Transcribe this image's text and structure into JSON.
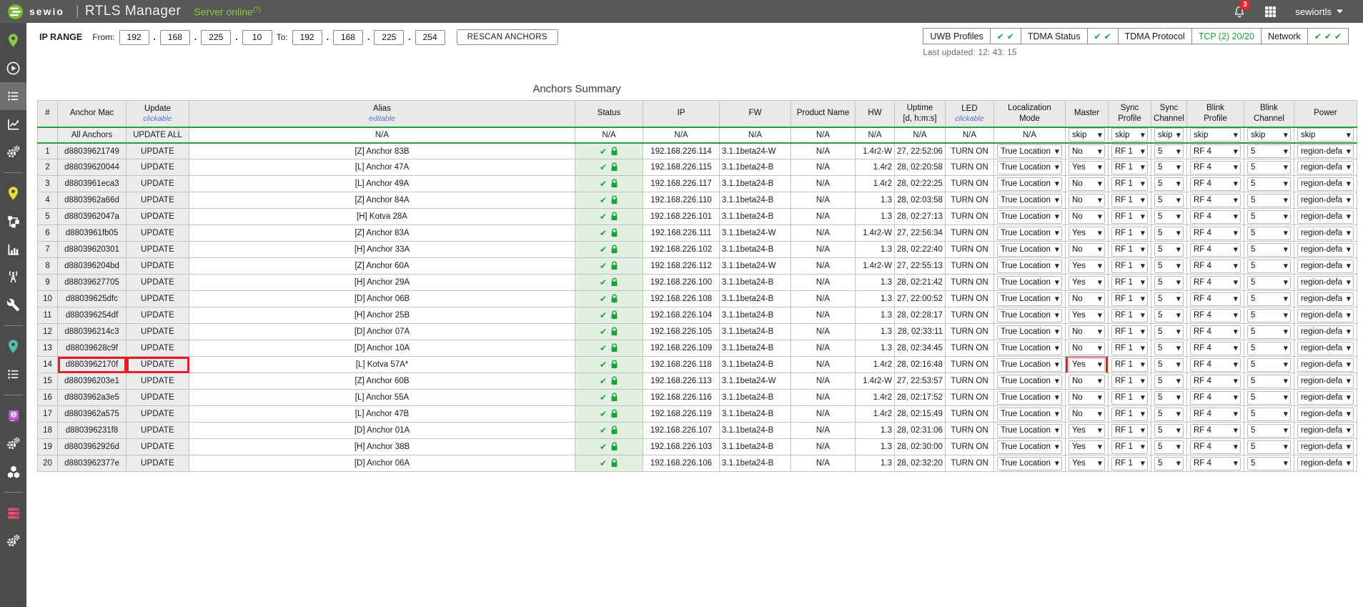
{
  "colors": {
    "accent_green": "#1fa23c",
    "lime_green": "#8dc63f",
    "highlight_red": "#ed1c24",
    "status_cell_bg": "#e3efe3"
  },
  "header": {
    "brand": "sewio",
    "separator": "|",
    "app_title": "RTLS Manager",
    "server_status": "Server online",
    "server_status_note": "(?)",
    "notification_count": "3",
    "user": "sewiortls"
  },
  "toolbar": {
    "ip_range_label": "IP RANGE",
    "from_label": "From:",
    "to_label": "To:",
    "octet_separator": ".",
    "from_octets": [
      "192",
      "168",
      "225",
      "10"
    ],
    "to_octets": [
      "192",
      "168",
      "225",
      "254"
    ],
    "rescan_label": "RESCAN ANCHORS",
    "last_updated": "Last updated: 12: 43: 15",
    "status_boxes": [
      {
        "label": "UWB Profiles",
        "checks": 2
      },
      {
        "label": "TDMA Status",
        "checks": 2
      },
      {
        "label": "TDMA Protocol",
        "value": "TCP (2) 20/20"
      },
      {
        "label": "Network",
        "checks": 3
      }
    ]
  },
  "sidebar": {
    "groups": [
      {
        "items": [
          {
            "name": "sensmap",
            "icon": "pin",
            "color": "#8dc63f"
          },
          {
            "name": "player",
            "icon": "play",
            "color": "#ffffff"
          },
          {
            "name": "anchors-summary",
            "icon": "list",
            "color": "#ffffff",
            "selected": true
          },
          {
            "name": "charts",
            "icon": "linechart",
            "color": "#ffffff"
          },
          {
            "name": "settings",
            "icon": "gears",
            "color": "#ffffff"
          }
        ]
      },
      {
        "items": [
          {
            "name": "map",
            "icon": "pin",
            "color": "#f1d832"
          },
          {
            "name": "topology",
            "icon": "network",
            "color": "#ffffff"
          },
          {
            "name": "statistics",
            "icon": "barchart",
            "color": "#ffffff"
          },
          {
            "name": "antennas",
            "icon": "antenna",
            "color": "#ffffff"
          },
          {
            "name": "tools",
            "icon": "wrench",
            "color": "#ffffff"
          }
        ]
      },
      {
        "items": [
          {
            "name": "locations",
            "icon": "pin",
            "color": "#56bfae"
          },
          {
            "name": "lists",
            "icon": "list",
            "color": "#ffffff"
          }
        ]
      },
      {
        "items": [
          {
            "name": "address-book",
            "icon": "book",
            "color": "#b964c9"
          },
          {
            "name": "services",
            "icon": "gears",
            "color": "#ffffff"
          },
          {
            "name": "modules",
            "icon": "cubes",
            "color": "#ffffff"
          }
        ]
      },
      {
        "items": [
          {
            "name": "servers",
            "icon": "servers",
            "color": "#e84f6e"
          },
          {
            "name": "system-settings",
            "icon": "gears",
            "color": "#ffffff"
          }
        ]
      }
    ]
  },
  "table": {
    "title": "Anchors Summary",
    "columns": [
      {
        "key": "num",
        "label": "#"
      },
      {
        "key": "mac",
        "label": "Anchor Mac"
      },
      {
        "key": "update",
        "label": "Update",
        "note": "clickable"
      },
      {
        "key": "alias",
        "label": "Alias",
        "note": "editable"
      },
      {
        "key": "status",
        "label": "Status"
      },
      {
        "key": "ip",
        "label": "IP"
      },
      {
        "key": "fw",
        "label": "FW"
      },
      {
        "key": "product",
        "label": "Product Name"
      },
      {
        "key": "hw",
        "label": "HW"
      },
      {
        "key": "uptime",
        "label": "Uptime",
        "line2": "[d, h:m:s]"
      },
      {
        "key": "led",
        "label": "LED",
        "note": "clickable"
      },
      {
        "key": "loc",
        "label": "Localization",
        "line2": "Mode"
      },
      {
        "key": "master",
        "label": "Master"
      },
      {
        "key": "sync_profile",
        "label": "Sync",
        "line2": "Profile"
      },
      {
        "key": "sync_channel",
        "label": "Sync",
        "line2": "Channel"
      },
      {
        "key": "blink_profile",
        "label": "Blink",
        "line2": "Profile"
      },
      {
        "key": "blink_channel",
        "label": "Blink",
        "line2": "Channel"
      },
      {
        "key": "power",
        "label": "Power"
      }
    ],
    "all_row": {
      "mac": "All Anchors",
      "update": "UPDATE ALL",
      "alias": "N/A",
      "status": "N/A",
      "ip": "N/A",
      "fw": "N/A",
      "product": "N/A",
      "hw": "N/A",
      "uptime": "N/A",
      "led": "N/A",
      "loc": "N/A",
      "master": "skip",
      "sync_profile": "skip",
      "sync_channel": "skip",
      "blink_profile": "skip",
      "blink_channel": "skip",
      "power": "skip"
    },
    "row_defaults": {
      "update": "UPDATE",
      "product": "N/A",
      "led": "TURN ON",
      "loc": "True Location",
      "sync_profile": "RF 1",
      "sync_channel": "5",
      "blink_profile": "RF 4",
      "blink_channel": "5",
      "power": "region-default"
    },
    "rows": [
      {
        "num": 1,
        "mac": "d88039621749",
        "alias": "[Z] Anchor 83B",
        "ip": "192.168.226.114",
        "fw": "3.1.1beta24-W",
        "hw": "1.4r2-W",
        "uptime": "27, 22:52:06",
        "master": "No"
      },
      {
        "num": 2,
        "mac": "d88039620044",
        "alias": "[L] Anchor 47A",
        "ip": "192.168.226.115",
        "fw": "3.1.1beta24-B",
        "hw": "1.4r2",
        "uptime": "28, 02:20:58",
        "master": "Yes"
      },
      {
        "num": 3,
        "mac": "d8803961eca3",
        "alias": "[L] Anchor 49A",
        "ip": "192.168.226.117",
        "fw": "3.1.1beta24-B",
        "hw": "1.4r2",
        "uptime": "28, 02:22:25",
        "master": "No"
      },
      {
        "num": 4,
        "mac": "d8803962a66d",
        "alias": "[Z] Anchor 84A",
        "ip": "192.168.226.110",
        "fw": "3.1.1beta24-B",
        "hw": "1.3",
        "uptime": "28, 02:03:58",
        "master": "No"
      },
      {
        "num": 5,
        "mac": "d8803962047a",
        "alias": "[H] Kotva 28A",
        "ip": "192.168.226.101",
        "fw": "3.1.1beta24-B",
        "hw": "1.3",
        "uptime": "28, 02:27:13",
        "master": "No"
      },
      {
        "num": 6,
        "mac": "d8803961fb05",
        "alias": "[Z] Anchor 83A",
        "ip": "192.168.226.111",
        "fw": "3.1.1beta24-W",
        "hw": "1.4r2-W",
        "uptime": "27, 22:56:34",
        "master": "Yes"
      },
      {
        "num": 7,
        "mac": "d88039620301",
        "alias": "[H] Anchor 33A",
        "ip": "192.168.226.102",
        "fw": "3.1.1beta24-B",
        "hw": "1.3",
        "uptime": "28, 02:22:40",
        "master": "No"
      },
      {
        "num": 8,
        "mac": "d880396204bd",
        "alias": "[Z] Anchor 60A",
        "ip": "192.168.226.112",
        "fw": "3.1.1beta24-W",
        "hw": "1.4r2-W",
        "uptime": "27, 22:55:13",
        "master": "Yes"
      },
      {
        "num": 9,
        "mac": "d88039627705",
        "alias": "[H] Anchor 29A",
        "ip": "192.168.226.100",
        "fw": "3.1.1beta24-B",
        "hw": "1.3",
        "uptime": "28, 02:21:42",
        "master": "Yes"
      },
      {
        "num": 10,
        "mac": "d88039625dfc",
        "alias": "[D] Anchor 06B",
        "ip": "192.168.226.108",
        "fw": "3.1.1beta24-B",
        "hw": "1.3",
        "uptime": "27, 22:00:52",
        "master": "No"
      },
      {
        "num": 11,
        "mac": "d880396254df",
        "alias": "[H] Anchor 25B",
        "ip": "192.168.226.104",
        "fw": "3.1.1beta24-B",
        "hw": "1.3",
        "uptime": "28, 02:28:17",
        "master": "Yes"
      },
      {
        "num": 12,
        "mac": "d880396214c3",
        "alias": "[D] Anchor 07A",
        "ip": "192.168.226.105",
        "fw": "3.1.1beta24-B",
        "hw": "1.3",
        "uptime": "28, 02:33:11",
        "master": "No"
      },
      {
        "num": 13,
        "mac": "d88039628c9f",
        "alias": "[D] Anchor 10A",
        "ip": "192.168.226.109",
        "fw": "3.1.1beta24-B",
        "hw": "1.3",
        "uptime": "28, 02:34:45",
        "master": "No"
      },
      {
        "num": 14,
        "mac": "d8803962170f",
        "alias": "[L] Kotva 57A*",
        "ip": "192.168.226.118",
        "fw": "3.1.1beta24-B",
        "hw": "1.4r2",
        "uptime": "28, 02:16:48",
        "master": "Yes"
      },
      {
        "num": 15,
        "mac": "d880396203e1",
        "alias": "[Z] Anchor 60B",
        "ip": "192.168.226.113",
        "fw": "3.1.1beta24-W",
        "hw": "1.4r2-W",
        "uptime": "27, 22:53:57",
        "master": "No"
      },
      {
        "num": 16,
        "mac": "d8803962a3e5",
        "alias": "[L] Anchor 55A",
        "ip": "192.168.226.116",
        "fw": "3.1.1beta24-B",
        "hw": "1.4r2",
        "uptime": "28, 02:17:52",
        "master": "No"
      },
      {
        "num": 17,
        "mac": "d8803962a575",
        "alias": "[L] Anchor 47B",
        "ip": "192.168.226.119",
        "fw": "3.1.1beta24-B",
        "hw": "1.4r2",
        "uptime": "28, 02:15:49",
        "master": "No"
      },
      {
        "num": 18,
        "mac": "d880396231f8",
        "alias": "[D] Anchor 01A",
        "ip": "192.168.226.107",
        "fw": "3.1.1beta24-B",
        "hw": "1.3",
        "uptime": "28, 02:31:06",
        "master": "Yes"
      },
      {
        "num": 19,
        "mac": "d8803962926d",
        "alias": "[H] Anchor 38B",
        "ip": "192.168.226.103",
        "fw": "3.1.1beta24-B",
        "hw": "1.3",
        "uptime": "28, 02:30:00",
        "master": "Yes"
      },
      {
        "num": 20,
        "mac": "d8803962377e",
        "alias": "[D] Anchor 06A",
        "ip": "192.168.226.106",
        "fw": "3.1.1beta24-B",
        "hw": "1.3",
        "uptime": "28, 02:32:20",
        "master": "Yes"
      }
    ],
    "highlight": {
      "row_num": 14,
      "cells": [
        "mac",
        "update",
        "master"
      ]
    }
  }
}
